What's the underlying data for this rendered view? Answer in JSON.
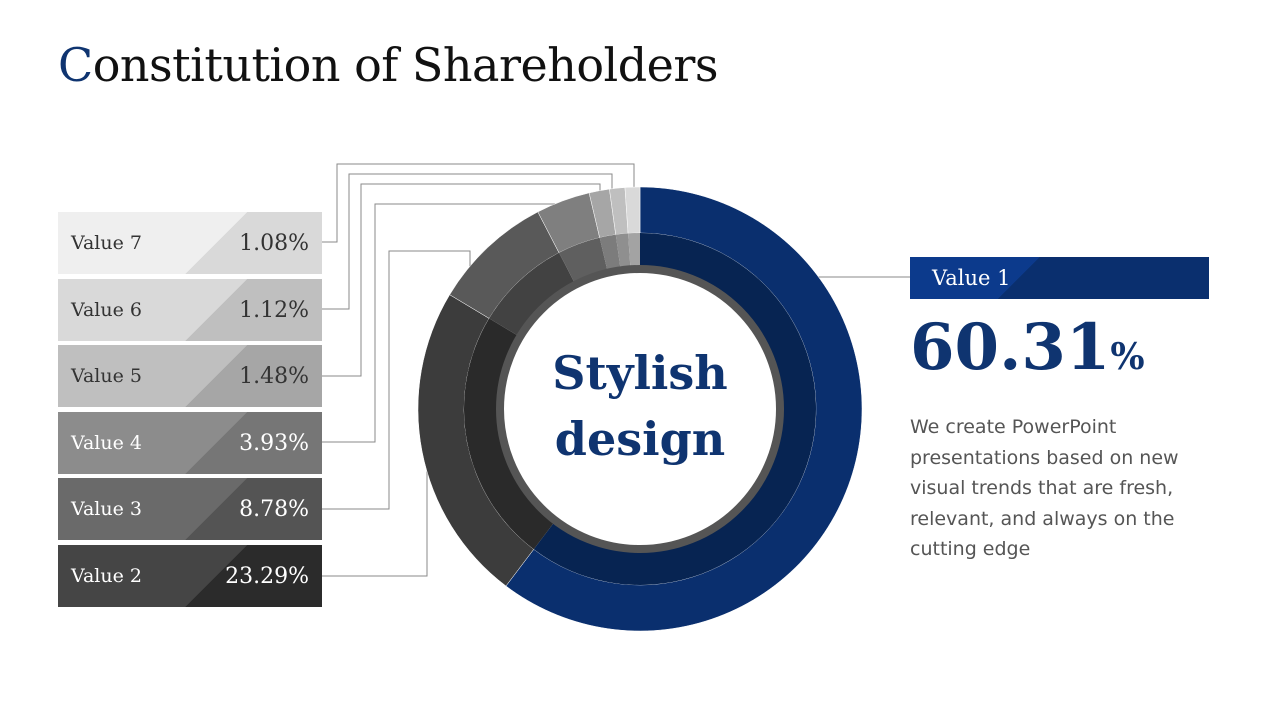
{
  "title": {
    "first_letter": "C",
    "rest": "onstitution of Shareholders"
  },
  "center_label": {
    "line1": "Stylish",
    "line2": "design"
  },
  "callout": {
    "label": "Value 1",
    "value": "60.31",
    "unit": "%",
    "description": "We create PowerPoint presentations based on new visual trends that are fresh, relevant, and always on the cutting edge"
  },
  "legend": [
    {
      "label": "Value 7",
      "value": "1.08%"
    },
    {
      "label": "Value 6",
      "value": "1.12%"
    },
    {
      "label": "Value 5",
      "value": "1.48%"
    },
    {
      "label": "Value 4",
      "value": "3.93%"
    },
    {
      "label": "Value 3",
      "value": "8.78%"
    },
    {
      "label": "Value 2",
      "value": "23.29%"
    }
  ],
  "chart_data": {
    "type": "pie",
    "style": "donut",
    "title": "Constitution of Shareholders",
    "categories": [
      "Value 1",
      "Value 2",
      "Value 3",
      "Value 4",
      "Value 5",
      "Value 6",
      "Value 7"
    ],
    "values": [
      60.31,
      23.29,
      8.78,
      3.93,
      1.48,
      1.12,
      1.08
    ],
    "unit": "%",
    "colors": [
      "#0a2f6e",
      "#3c3c3c",
      "#595959",
      "#7f7f7f",
      "#a6a6a6",
      "#bfbfbf",
      "#d9d9d9"
    ],
    "inner_colors": [
      "#072452",
      "#2a2a2a",
      "#424242",
      "#5f5f5f",
      "#7c7c7c",
      "#8f8f8f",
      "#a3a3a3"
    ]
  },
  "colors": {
    "accent": "#0f3470",
    "legend_fills": [
      "#efefef",
      "#d9d9d9",
      "#bfbfbf",
      "#8c8c8c",
      "#6a6a6a",
      "#454545"
    ],
    "legend_shades": [
      "#d9d9d9",
      "#bfbfbf",
      "#a6a6a6",
      "#767676",
      "#545454",
      "#2b2b2b"
    ],
    "legend_text": [
      "#333333",
      "#333333",
      "#333333",
      "#ffffff",
      "#ffffff",
      "#ffffff"
    ]
  }
}
